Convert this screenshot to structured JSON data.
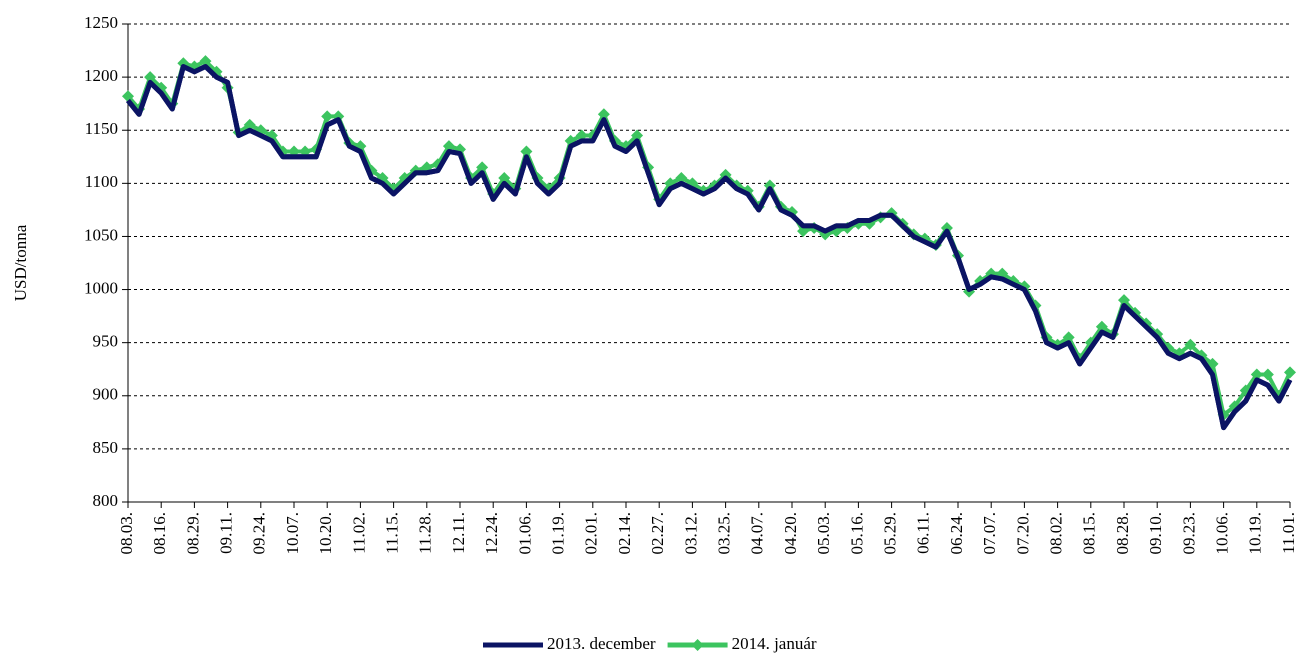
{
  "chart_data": {
    "type": "line",
    "y_label": "USD/tonna",
    "categories": [
      "08.03.",
      null,
      null,
      "08.16.",
      null,
      null,
      "08.29.",
      null,
      null,
      "09.11.",
      null,
      null,
      "09.24.",
      null,
      null,
      "10.07.",
      null,
      null,
      "10.20.",
      null,
      null,
      "11.02.",
      null,
      null,
      "11.15.",
      null,
      null,
      "11.28.",
      null,
      null,
      "12.11.",
      null,
      null,
      "12.24.",
      null,
      null,
      "01.06.",
      null,
      null,
      "01.19.",
      null,
      null,
      "02.01.",
      null,
      null,
      "02.14.",
      null,
      null,
      "02.27.",
      null,
      null,
      "03.12.",
      null,
      null,
      "03.25.",
      null,
      null,
      "04.07.",
      null,
      null,
      "04.20.",
      null,
      null,
      "05.03.",
      null,
      null,
      "05.16.",
      null,
      null,
      "05.29.",
      null,
      null,
      "06.11.",
      null,
      null,
      "06.24.",
      null,
      null,
      "07.07.",
      null,
      null,
      "07.20.",
      null,
      null,
      "08.02.",
      null,
      null,
      "08.15.",
      null,
      null,
      "08.28.",
      null,
      null,
      "09.10.",
      null,
      null,
      "09.23.",
      null,
      null,
      "10.06.",
      null,
      null,
      "10.19.",
      null,
      null,
      "11.01."
    ],
    "series": [
      {
        "name": "2013. december",
        "color": "#0b1464",
        "values": [
          1178,
          1165,
          1195,
          1185,
          1170,
          1210,
          1205,
          1210,
          1200,
          1195,
          1145,
          1150,
          1145,
          1140,
          1125,
          1125,
          1125,
          1125,
          1155,
          1160,
          1135,
          1130,
          1105,
          1100,
          1090,
          1100,
          1110,
          1110,
          1112,
          1130,
          1128,
          1100,
          1110,
          1085,
          1100,
          1090,
          1125,
          1100,
          1090,
          1100,
          1135,
          1140,
          1140,
          1160,
          1135,
          1130,
          1140,
          1110,
          1080,
          1095,
          1100,
          1095,
          1090,
          1095,
          1105,
          1095,
          1090,
          1075,
          1095,
          1075,
          1070,
          1060,
          1060,
          1055,
          1060,
          1060,
          1065,
          1065,
          1070,
          1070,
          1060,
          1050,
          1045,
          1040,
          1055,
          1030,
          1000,
          1005,
          1012,
          1010,
          1005,
          1000,
          980,
          950,
          945,
          950,
          930,
          945,
          960,
          955,
          985,
          975,
          965,
          955,
          940,
          935,
          940,
          935,
          920,
          870,
          885,
          895,
          915,
          910,
          895,
          915
        ]
      },
      {
        "name": "2014. január",
        "color": "#3cc45f",
        "marker": "diamond",
        "values": [
          1182,
          1170,
          1200,
          1190,
          1175,
          1213,
          1210,
          1215,
          1205,
          1190,
          1148,
          1155,
          1150,
          1145,
          1130,
          1130,
          1130,
          1132,
          1163,
          1163,
          1138,
          1135,
          1112,
          1105,
          1095,
          1105,
          1112,
          1115,
          1118,
          1135,
          1132,
          1105,
          1115,
          1090,
          1105,
          1095,
          1130,
          1105,
          1095,
          1105,
          1140,
          1145,
          1145,
          1165,
          1140,
          1135,
          1145,
          1115,
          1085,
          1100,
          1105,
          1100,
          1093,
          1098,
          1108,
          1098,
          1093,
          1078,
          1098,
          1078,
          1073,
          1055,
          1058,
          1052,
          1055,
          1058,
          1062,
          1062,
          1068,
          1072,
          1062,
          1052,
          1048,
          1042,
          1058,
          1032,
          998,
          1008,
          1015,
          1015,
          1008,
          1003,
          985,
          955,
          948,
          955,
          935,
          950,
          965,
          958,
          990,
          978,
          968,
          958,
          945,
          940,
          948,
          938,
          930,
          882,
          890,
          905,
          920,
          920,
          900,
          922
        ]
      }
    ],
    "ylim": [
      800,
      1250
    ],
    "yticks": [
      800,
      850,
      900,
      950,
      1000,
      1050,
      1100,
      1150,
      1200,
      1250
    ],
    "grid": true,
    "legend": "bottom"
  }
}
